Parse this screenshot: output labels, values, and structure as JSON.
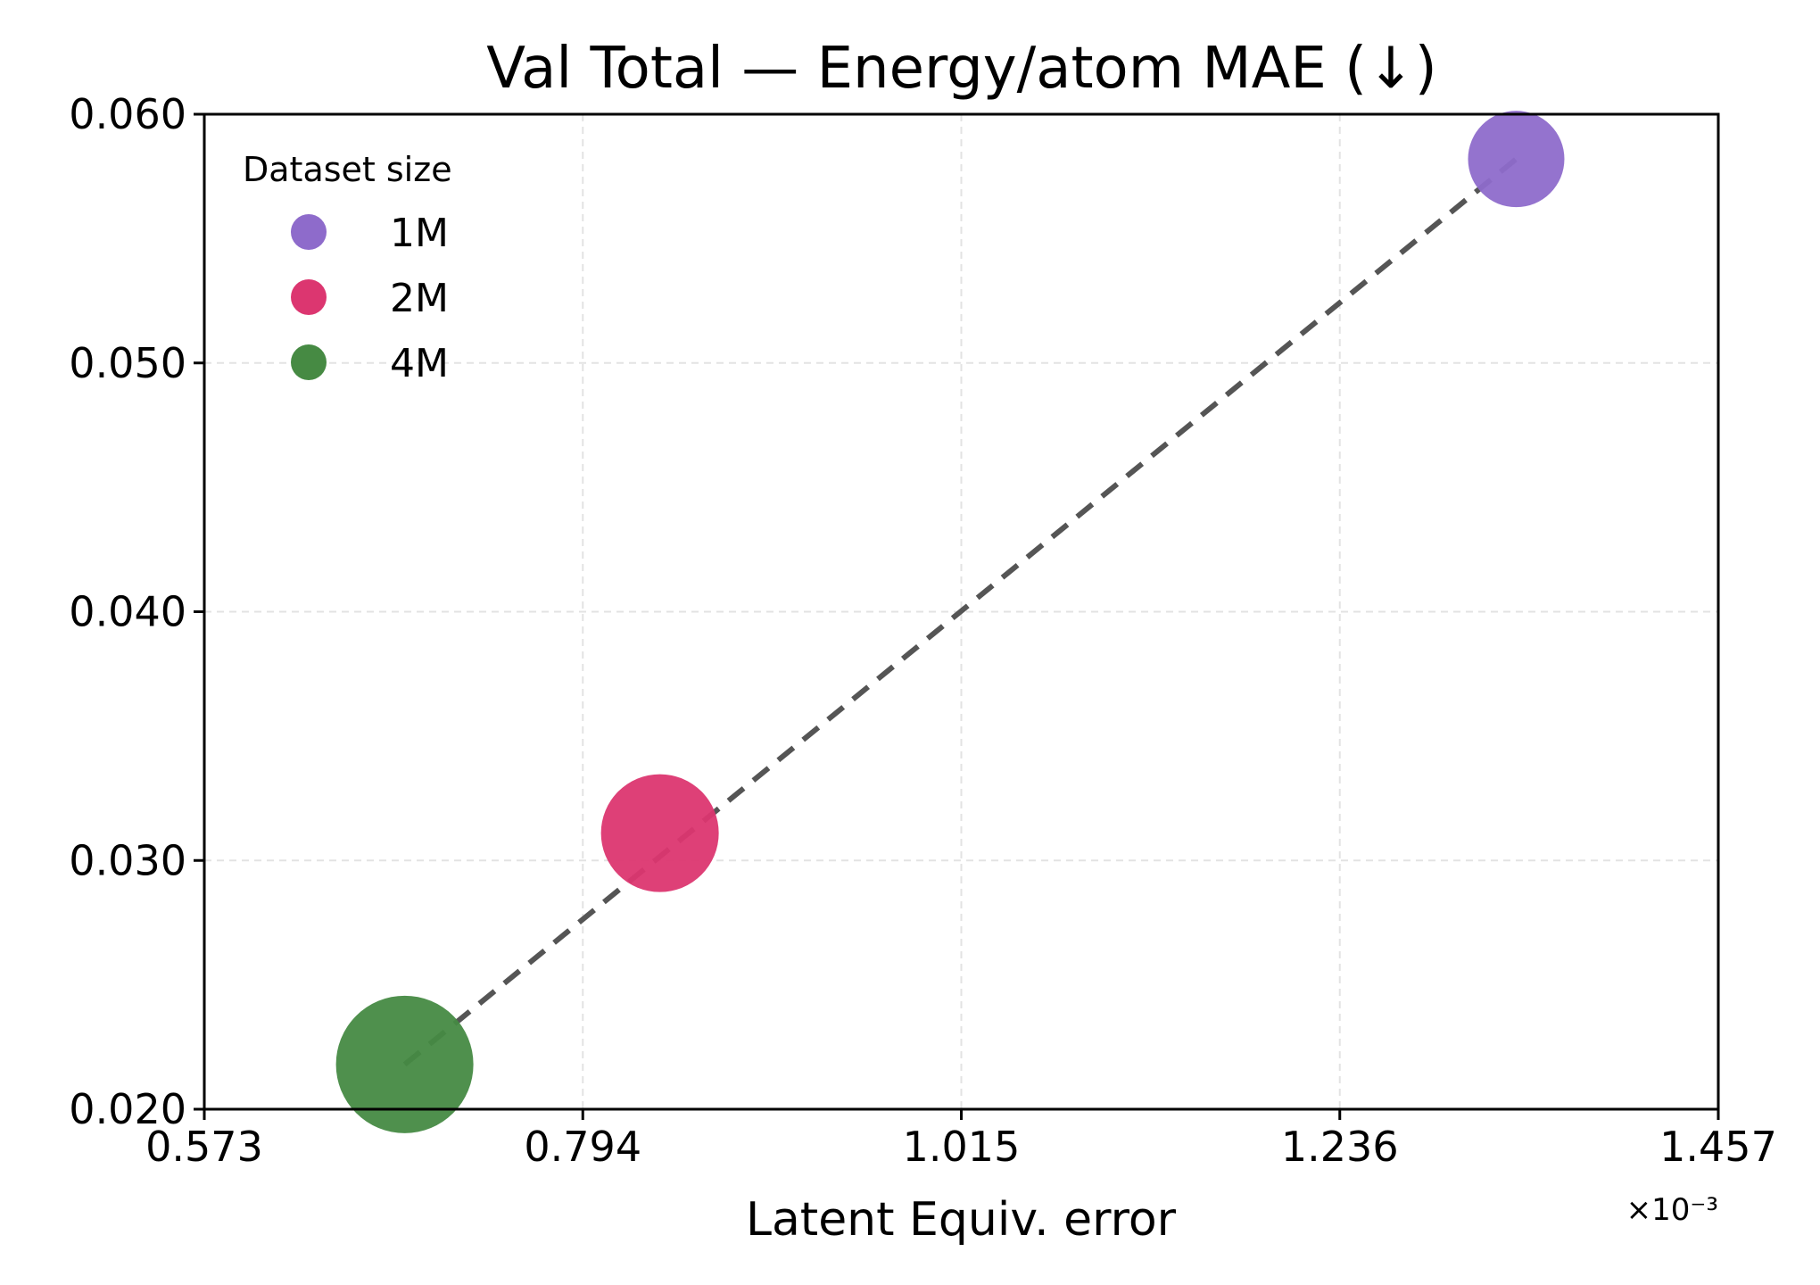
{
  "chart_data": {
    "type": "scatter",
    "title": "Val Total — Energy/atom MAE (↓)",
    "xlabel": "Latent Equiv. error",
    "ylabel": "",
    "x_scale_label": "×10⁻³",
    "xlim": [
      0.573,
      1.457
    ],
    "ylim": [
      0.02,
      0.06
    ],
    "xticks": [
      "0.573",
      "0.794",
      "1.015",
      "1.236",
      "1.457"
    ],
    "yticks": [
      "0.020",
      "0.030",
      "0.040",
      "0.050",
      "0.060"
    ],
    "grid": true,
    "legend": {
      "title": "Dataset size",
      "placement": "top-left"
    },
    "series": [
      {
        "name": "1M",
        "x": 1.339,
        "y": 0.0582,
        "color": "#8e6bcb",
        "marker_weight": 1
      },
      {
        "name": "2M",
        "x": 0.839,
        "y": 0.0311,
        "color": "#dc3670",
        "marker_weight": 2
      },
      {
        "name": "4M",
        "x": 0.69,
        "y": 0.0218,
        "color": "#468a43",
        "marker_weight": 4
      }
    ],
    "trendline": {
      "style": "dashed",
      "color": "#555555",
      "from": [
        0.69,
        0.0218
      ],
      "to": [
        1.339,
        0.0582
      ]
    }
  }
}
